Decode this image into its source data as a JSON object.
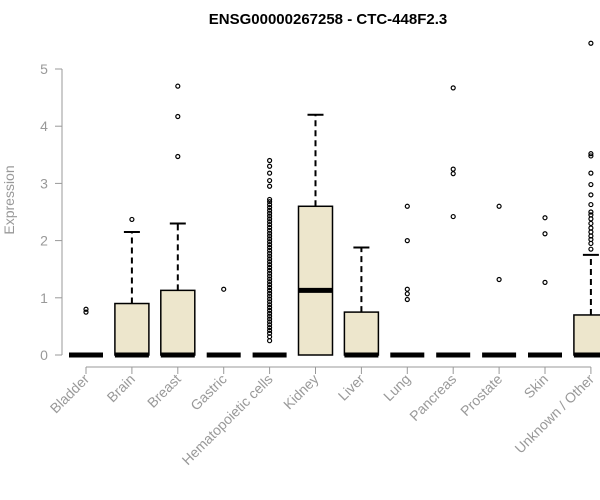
{
  "chart_data": {
    "type": "boxplot",
    "title": "ENSG00000267258 - CTC-448F2.3",
    "xlabel": "",
    "ylabel": "Expression",
    "ylim": [
      0,
      5.5
    ],
    "yticks": [
      "0",
      "1",
      "2",
      "3",
      "4",
      "5"
    ],
    "grid": false,
    "box_fill": "#EDE6CC",
    "box_stroke": "#000000",
    "categories": [
      "Bladder",
      "Brain",
      "Breast",
      "Gastric",
      "Hematopoietic cells",
      "Kidney",
      "Liver",
      "Lung",
      "Pancreas",
      "Prostate",
      "Skin",
      "Unknown / Other"
    ],
    "boxes": [
      {
        "q1": 0,
        "median": 0,
        "q3": 0,
        "whisker_low": 0,
        "whisker_high": 0,
        "outliers": [
          0.75,
          0.8
        ]
      },
      {
        "q1": 0,
        "median": 0,
        "q3": 0.9,
        "whisker_low": 0,
        "whisker_high": 2.15,
        "outliers": [
          2.37
        ]
      },
      {
        "q1": 0,
        "median": 0,
        "q3": 1.13,
        "whisker_low": 0,
        "whisker_high": 2.3,
        "outliers": [
          3.47,
          4.17,
          4.7
        ]
      },
      {
        "q1": 0,
        "median": 0,
        "q3": 0,
        "whisker_low": 0,
        "whisker_high": 0,
        "outliers": [
          1.15
        ]
      },
      {
        "q1": 0,
        "median": 0,
        "q3": 0,
        "whisker_low": 0,
        "whisker_high": 0,
        "outliers": [
          0.25,
          0.32,
          0.38,
          0.43,
          0.48,
          0.53,
          0.58,
          0.63,
          0.68,
          0.73,
          0.78,
          0.83,
          0.88,
          0.93,
          0.98,
          1.03,
          1.08,
          1.13,
          1.18,
          1.23,
          1.28,
          1.33,
          1.38,
          1.43,
          1.48,
          1.53,
          1.58,
          1.63,
          1.68,
          1.73,
          1.78,
          1.83,
          1.88,
          1.93,
          1.98,
          2.03,
          2.08,
          2.13,
          2.18,
          2.23,
          2.28,
          2.33,
          2.38,
          2.43,
          2.48,
          2.53,
          2.58,
          2.63,
          2.68,
          2.72,
          2.95,
          3.05,
          3.18,
          3.3,
          3.4
        ]
      },
      {
        "q1": 0,
        "median": 1.13,
        "q3": 2.6,
        "whisker_low": 0,
        "whisker_high": 4.2,
        "outliers": []
      },
      {
        "q1": 0,
        "median": 0,
        "q3": 0.75,
        "whisker_low": 0,
        "whisker_high": 1.88,
        "outliers": []
      },
      {
        "q1": 0,
        "median": 0,
        "q3": 0,
        "whisker_low": 0,
        "whisker_high": 0,
        "outliers": [
          0.97,
          1.07,
          1.15,
          2.0,
          2.6
        ]
      },
      {
        "q1": 0,
        "median": 0,
        "q3": 0,
        "whisker_low": 0,
        "whisker_high": 0,
        "outliers": [
          2.42,
          3.17,
          3.25,
          4.67
        ]
      },
      {
        "q1": 0,
        "median": 0,
        "q3": 0,
        "whisker_low": 0,
        "whisker_high": 0,
        "outliers": [
          1.32,
          2.6
        ]
      },
      {
        "q1": 0,
        "median": 0,
        "q3": 0,
        "whisker_low": 0,
        "whisker_high": 0,
        "outliers": [
          1.27,
          2.12,
          2.4
        ]
      },
      {
        "q1": 0,
        "median": 0,
        "q3": 0.7,
        "whisker_low": 0,
        "whisker_high": 1.75,
        "outliers": [
          1.85,
          1.95,
          2.02,
          2.08,
          2.15,
          2.22,
          2.3,
          2.38,
          2.45,
          2.5,
          2.63,
          2.8,
          2.98,
          3.18,
          3.48,
          3.52,
          5.45
        ]
      }
    ]
  }
}
